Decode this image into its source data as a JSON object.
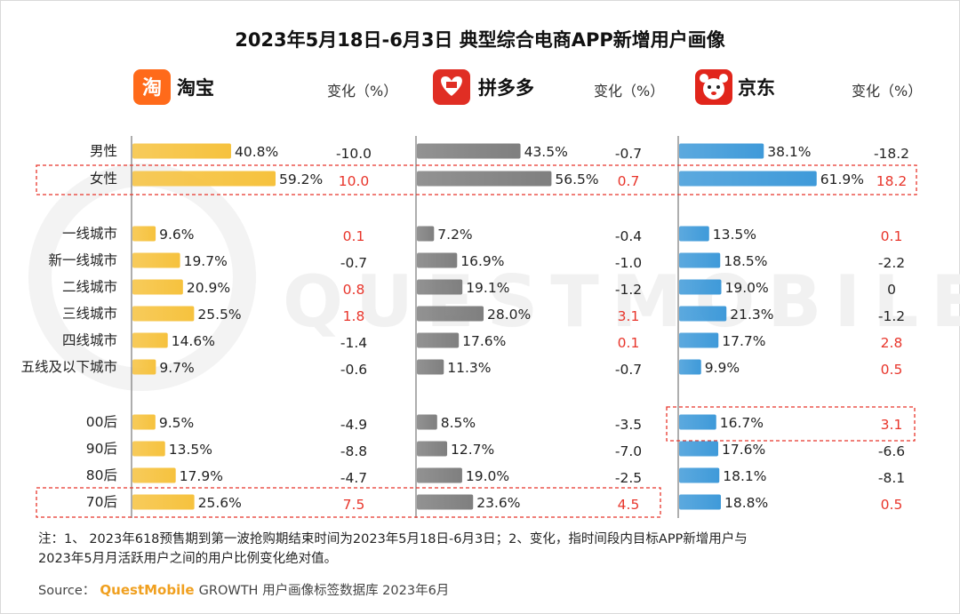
{
  "chart_data": [
    {
      "type": "bar",
      "title": "2023年5月18日-6月3日 典型综合电商APP新增用户画像",
      "brand": "淘宝",
      "change_header": "变化（%）",
      "categories": [
        "男性",
        "女性",
        "一线城市",
        "新一线城市",
        "二线城市",
        "三线城市",
        "四线城市",
        "五线及以下城市",
        "00后",
        "90后",
        "80后",
        "70后"
      ],
      "values": [
        40.8,
        59.2,
        9.6,
        19.7,
        20.9,
        25.5,
        14.6,
        9.7,
        9.5,
        13.5,
        17.9,
        25.6
      ],
      "value_labels": [
        "40.8%",
        "59.2%",
        "9.6%",
        "19.7%",
        "20.9%",
        "25.5%",
        "14.6%",
        "9.7%",
        "9.5%",
        "13.5%",
        "17.9%",
        "25.6%"
      ],
      "changes": [
        "-10.0",
        "10.0",
        "0.1",
        "-0.7",
        "0.8",
        "1.8",
        "-1.4",
        "-0.6",
        "-4.9",
        "-8.8",
        "-4.7",
        "7.5"
      ],
      "bar_color": "#f6c23e"
    },
    {
      "type": "bar",
      "brand": "拼多多",
      "change_header": "变化（%）",
      "categories": [
        "男性",
        "女性",
        "一线城市",
        "新一线城市",
        "二线城市",
        "三线城市",
        "四线城市",
        "五线及以下城市",
        "00后",
        "90后",
        "80后",
        "70后"
      ],
      "values": [
        43.5,
        56.5,
        7.2,
        16.9,
        19.1,
        28.0,
        17.6,
        11.3,
        8.5,
        12.7,
        19.0,
        23.6
      ],
      "value_labels": [
        "43.5%",
        "56.5%",
        "7.2%",
        "16.9%",
        "19.1%",
        "28.0%",
        "17.6%",
        "11.3%",
        "8.5%",
        "12.7%",
        "19.0%",
        "23.6%"
      ],
      "changes": [
        "-0.7",
        "0.7",
        "-0.4",
        "-1.0",
        "-1.2",
        "3.1",
        "0.1",
        "-0.7",
        "-3.5",
        "-7.0",
        "-2.5",
        "4.5"
      ],
      "bar_color": "#7f7f7f"
    },
    {
      "type": "bar",
      "brand": "京东",
      "change_header": "变化（%）",
      "categories": [
        "男性",
        "女性",
        "一线城市",
        "新一线城市",
        "二线城市",
        "三线城市",
        "四线城市",
        "五线及以下城市",
        "00后",
        "90后",
        "80后",
        "70后"
      ],
      "values": [
        38.1,
        61.9,
        13.5,
        18.5,
        19.0,
        21.3,
        17.7,
        9.9,
        16.7,
        17.6,
        18.1,
        18.8
      ],
      "value_labels": [
        "38.1%",
        "61.9%",
        "13.5%",
        "18.5%",
        "19.0%",
        "21.3%",
        "17.7%",
        "9.9%",
        "16.7%",
        "17.6%",
        "18.1%",
        "18.8%"
      ],
      "changes": [
        "-18.2",
        "18.2",
        "0.1",
        "-2.2",
        "0",
        "-1.2",
        "2.8",
        "0.5",
        "3.1",
        "-6.6",
        "-8.1",
        "0.5"
      ],
      "bar_color": "#3f9ad9"
    }
  ],
  "positive_change_color": "#e8352b",
  "icons": [
    "taobao-logo-icon",
    "pinduoduo-logo-icon",
    "jd-logo-icon"
  ],
  "watermark": "QUESTMOBILE",
  "note": "注：1、 2023年618预售期到第一波抢购期结束时间为2023年5月18日-6月3日；2、变化，指时间段内目标APP新增用户与",
  "note_line2": "2023年5月月活跃用户之间的用户比例变化绝对值。",
  "source_prefix": "Source：",
  "source_brand": "QuestMobile",
  "source_rest": " GROWTH 用户画像标签数据库 2023年6月"
}
